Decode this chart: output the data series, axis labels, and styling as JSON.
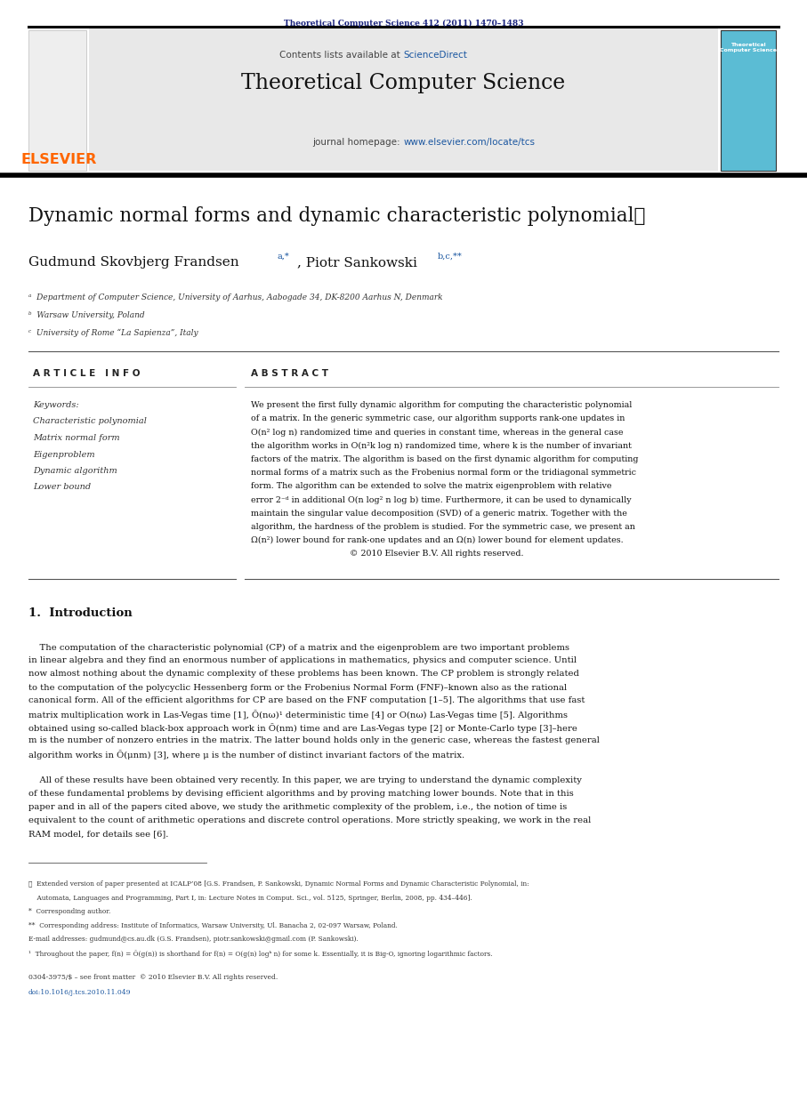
{
  "page_width": 9.07,
  "page_height": 12.38,
  "bg_color": "#ffffff",
  "top_citation": "Theoretical Computer Science 412 (2011) 1470–1483",
  "top_citation_color": "#1a237e",
  "journal_name": "Theoretical Computer Science",
  "contents_text": "Contents lists available at ",
  "science_direct_text": "ScienceDirect",
  "journal_homepage_prefix": "journal homepage: ",
  "journal_url": "www.elsevier.com/locate/tcs",
  "elsevier_color": "#ff6600",
  "link_color": "#1a56a0",
  "header_bg": "#e8e8e8",
  "paper_title": "Dynamic normal forms and dynamic characteristic polynomial",
  "title_star": "★",
  "author1": "Gudmund Skovbjerg Frandsen",
  "author1_sup": "a,*",
  "author2": "Piotr Sankowski",
  "author2_sup": "b,c,**",
  "affil_a": "ᵃ  Department of Computer Science, University of Aarhus, Aabogade 34, DK-8200 Aarhus N, Denmark",
  "affil_b": "ᵇ  Warsaw University, Poland",
  "affil_c": "ᶜ  University of Rome “La Sapienza”, Italy",
  "article_info_header": "A R T I C L E   I N F O",
  "abstract_header": "A B S T R A C T",
  "keywords_label": "Keywords:",
  "keywords": [
    "Characteristic polynomial",
    "Matrix normal form",
    "Eigenproblem",
    "Dynamic algorithm",
    "Lower bound"
  ],
  "abstract_lines": [
    "We present the first fully dynamic algorithm for computing the characteristic polynomial",
    "of a matrix. In the generic symmetric case, our algorithm supports rank-one updates in",
    "O(n² log n) randomized time and queries in constant time, whereas in the general case",
    "the algorithm works in O(n²k log n) randomized time, where k is the number of invariant",
    "factors of the matrix. The algorithm is based on the first dynamic algorithm for computing",
    "normal forms of a matrix such as the Frobenius normal form or the tridiagonal symmetric",
    "form. The algorithm can be extended to solve the matrix eigenproblem with relative",
    "error 2⁻ᵈ in additional O(n log² n log b) time. Furthermore, it can be used to dynamically",
    "maintain the singular value decomposition (SVD) of a generic matrix. Together with the",
    "algorithm, the hardness of the problem is studied. For the symmetric case, we present an",
    "Ω(n²) lower bound for rank-one updates and an Ω(n) lower bound for element updates.",
    "                                     © 2010 Elsevier B.V. All rights reserved."
  ],
  "section1": "1.  Introduction",
  "intro_p1_lines": [
    "    The computation of the characteristic polynomial (CP) of a matrix and the eigenproblem are two important problems",
    "in linear algebra and they find an enormous number of applications in mathematics, physics and computer science. Until",
    "now almost nothing about the dynamic complexity of these problems has been known. The CP problem is strongly related",
    "to the computation of the polycyclic Hessenberg form or the Frobenius Normal Form (FNF)–known also as the rational",
    "canonical form. All of the efficient algorithms for CP are based on the FNF computation [1–5]. The algorithms that use fast",
    "matrix multiplication work in Las-Vegas time [1], Õ(nω)¹ deterministic time [4] or O(nω) Las-Vegas time [5]. Algorithms",
    "obtained using so-called black-box approach work in Õ(nm) time and are Las-Vegas type [2] or Monte-Carlo type [3]–here",
    "m is the number of nonzero entries in the matrix. The latter bound holds only in the generic case, whereas the fastest general",
    "algorithm works in Õ(μnm) [3], where μ is the number of distinct invariant factors of the matrix."
  ],
  "intro_p2_lines": [
    "    All of these results have been obtained very recently. In this paper, we are trying to understand the dynamic complexity",
    "of these fundamental problems by devising efficient algorithms and by proving matching lower bounds. Note that in this",
    "paper and in all of the papers cited above, we study the arithmetic complexity of the problem, i.e., the notion of time is",
    "equivalent to the count of arithmetic operations and discrete control operations. More strictly speaking, we work in the real",
    "RAM model, for details see [6]."
  ],
  "fn_star": "★  Extended version of paper presented at ICALP’08 [G.S. Frandsen, P. Sankowski, Dynamic Normal Forms and Dynamic Characteristic Polynomial, in:",
  "fn_star2": "    Automata, Languages and Programming, Part I, in: Lecture Notes in Comput. Sci., vol. 5125, Springer, Berlin, 2008, pp. 434–446].",
  "fn_single_star": "*  Corresponding author.",
  "fn_double_star": "**  Corresponding address: Institute of Informatics, Warsaw University, Ul. Banacha 2, 02-097 Warsaw, Poland.",
  "fn_email": "E-mail addresses: gudmund@cs.au.dk (G.S. Frandsen), piotr.sankowski@gmail.com (P. Sankowski).",
  "fn_1": "¹  Throughout the paper, f(n) = Õ(g(n)) is shorthand for f(n) = O(g(n) logᵏ n) for some k. Essentially, it is Big-O, ignoring logarithmic factors.",
  "issn_line": "0304-3975/$ – see front matter  © 2010 Elsevier B.V. All rights reserved.",
  "doi_line": "doi:10.1016/j.tcs.2010.11.049"
}
